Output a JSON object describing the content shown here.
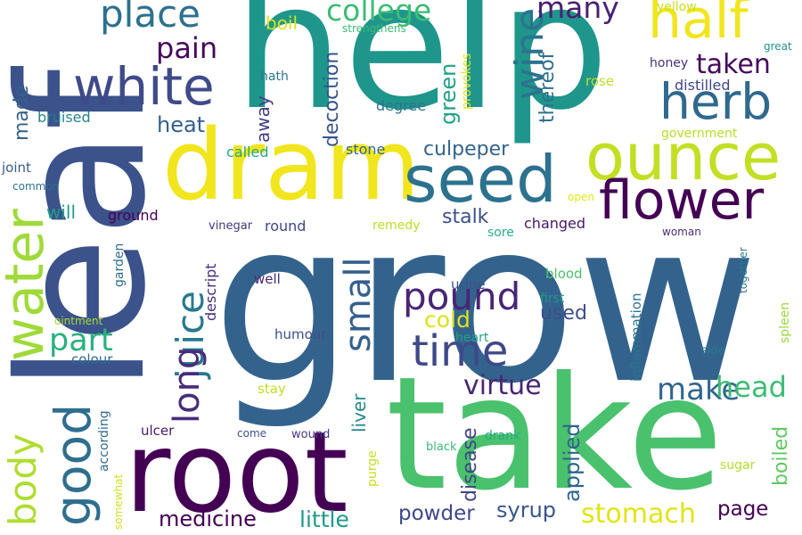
{
  "words": [
    {
      "text": "grow",
      "color": "#33638d"
    },
    {
      "text": "help",
      "color": "#1f968b"
    },
    {
      "text": "leaf",
      "color": "#3b528b"
    },
    {
      "text": "take",
      "color": "#4ac16d"
    },
    {
      "text": "root",
      "color": "#440154"
    },
    {
      "text": "dram",
      "color": "#f1e51d"
    },
    {
      "text": "seed",
      "color": "#2c728e"
    },
    {
      "text": "ounce",
      "color": "#c2df23"
    },
    {
      "text": "water",
      "color": "#9fda3a"
    },
    {
      "text": "half",
      "color": "#f1e51d"
    },
    {
      "text": "herb",
      "color": "#30698e"
    },
    {
      "text": "white",
      "color": "#3e4a89"
    },
    {
      "text": "flower",
      "color": "#440154"
    },
    {
      "text": "good",
      "color": "#2e6e8e"
    },
    {
      "text": "time",
      "color": "#3e4989"
    },
    {
      "text": "body",
      "color": "#b0dd2f"
    },
    {
      "text": "juice",
      "color": "#2a788e"
    },
    {
      "text": "long",
      "color": "#472d7b"
    },
    {
      "text": "small",
      "color": "#355f8d"
    },
    {
      "text": "pound",
      "color": "#482576"
    },
    {
      "text": "place",
      "color": "#2d708e"
    },
    {
      "text": "college",
      "color": "#3dbc74"
    },
    {
      "text": "wine",
      "color": "#2c738e"
    },
    {
      "text": "many",
      "color": "#482173"
    },
    {
      "text": "taken",
      "color": "#46085c"
    },
    {
      "text": "pain",
      "color": "#46085c"
    },
    {
      "text": "part",
      "color": "#2ab07f"
    },
    {
      "text": "make",
      "color": "#31678e"
    },
    {
      "text": "head",
      "color": "#3dbc74"
    },
    {
      "text": "virtue",
      "color": "#482576"
    },
    {
      "text": "stomach",
      "color": "#e2e418"
    },
    {
      "text": "medicine",
      "color": "#440154"
    },
    {
      "text": "little",
      "color": "#1f9a8a"
    },
    {
      "text": "powder",
      "color": "#3f4788"
    },
    {
      "text": "syrup",
      "color": "#39558c"
    },
    {
      "text": "page",
      "color": "#440154"
    },
    {
      "text": "made",
      "color": "#33628d"
    },
    {
      "text": "heat",
      "color": "#34608d"
    },
    {
      "text": "culpeper",
      "color": "#33638d"
    },
    {
      "text": "stalk",
      "color": "#3b528b"
    },
    {
      "text": "boil",
      "color": "#d8e219"
    },
    {
      "text": "green",
      "color": "#20a386"
    },
    {
      "text": "decoction",
      "color": "#3a538b"
    },
    {
      "text": "away",
      "color": "#433e85"
    },
    {
      "text": "liver",
      "color": "#24868e"
    },
    {
      "text": "cold",
      "color": "#dde318"
    },
    {
      "text": "used",
      "color": "#3d4e8a"
    },
    {
      "text": "disease",
      "color": "#414487"
    },
    {
      "text": "applied",
      "color": "#32648e"
    },
    {
      "text": "boiled",
      "color": "#5ec962"
    },
    {
      "text": "thereof",
      "color": "#2d718e"
    },
    {
      "text": "will",
      "color": "#1f9e89"
    },
    {
      "text": "bruised",
      "color": "#25848e"
    },
    {
      "text": "joint",
      "color": "#375a8c"
    },
    {
      "text": "ground",
      "color": "#440154"
    },
    {
      "text": "round",
      "color": "#3f4788"
    },
    {
      "text": "called",
      "color": "#22a884"
    },
    {
      "text": "stone",
      "color": "#30698e"
    },
    {
      "text": "degree",
      "color": "#2b748e"
    },
    {
      "text": "changed",
      "color": "#481668"
    },
    {
      "text": "remedy",
      "color": "#b8de29"
    },
    {
      "text": "sore",
      "color": "#2ab07f"
    },
    {
      "text": "honey",
      "color": "#46337e"
    },
    {
      "text": "distilled",
      "color": "#3f4788"
    },
    {
      "text": "rose",
      "color": "#bddf26"
    },
    {
      "text": "government",
      "color": "#b5de2b"
    },
    {
      "text": "yellow",
      "color": "#c8e020"
    },
    {
      "text": "great",
      "color": "#21918c"
    },
    {
      "text": "strengthens",
      "color": "#3dbc74"
    },
    {
      "text": "provokes",
      "color": "#e5e419"
    },
    {
      "text": "hath",
      "color": "#2a788e"
    },
    {
      "text": "common",
      "color": "#2c738e"
    },
    {
      "text": "vinegar",
      "color": "#453781"
    },
    {
      "text": "open",
      "color": "#e7e419"
    },
    {
      "text": "woman",
      "color": "#46307e"
    },
    {
      "text": "garden",
      "color": "#2f6c8e"
    },
    {
      "text": "descript",
      "color": "#472c7a"
    },
    {
      "text": "well",
      "color": "#482475"
    },
    {
      "text": "humour",
      "color": "#3c4f8a"
    },
    {
      "text": "stay",
      "color": "#c0df25"
    },
    {
      "text": "urine",
      "color": "#3b528b"
    },
    {
      "text": "blood",
      "color": "#4ac16d"
    },
    {
      "text": "first",
      "color": "#1f968b"
    },
    {
      "text": "heart",
      "color": "#1fa188"
    },
    {
      "text": "inflammation",
      "color": "#2b758e"
    },
    {
      "text": "spleen",
      "color": "#9bd93c"
    },
    {
      "text": "side",
      "color": "#297b8e"
    },
    {
      "text": "together",
      "color": "#2a768e"
    },
    {
      "text": "ointment",
      "color": "#a8db34"
    },
    {
      "text": "colour",
      "color": "#2e6d8e"
    },
    {
      "text": "ulcer",
      "color": "#481a6c"
    },
    {
      "text": "according",
      "color": "#2f6b8e"
    },
    {
      "text": "somewhat",
      "color": "#cde11d"
    },
    {
      "text": "come",
      "color": "#3b528b"
    },
    {
      "text": "wound",
      "color": "#453781"
    },
    {
      "text": "purge",
      "color": "#c5e021"
    },
    {
      "text": "drank",
      "color": "#24aa83"
    },
    {
      "text": "black",
      "color": "#3bbb75"
    },
    {
      "text": "sugar",
      "color": "#b2dd2d"
    }
  ]
}
